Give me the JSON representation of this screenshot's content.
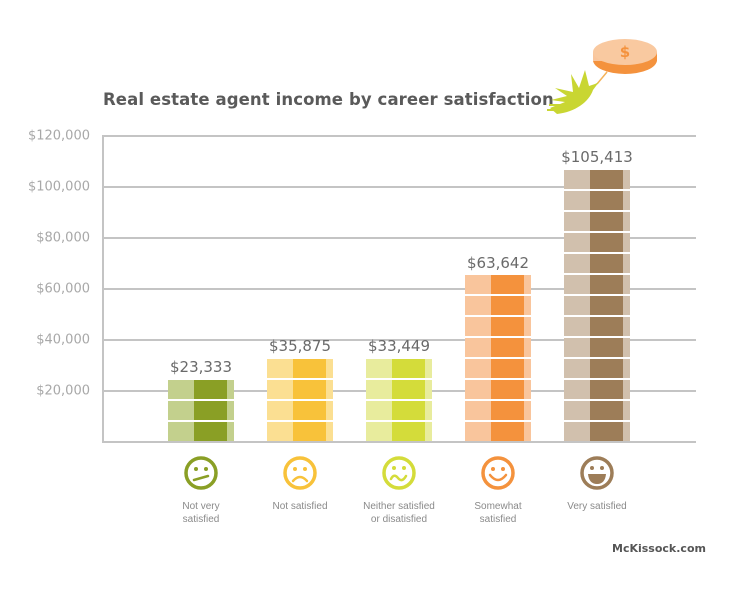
{
  "header": {
    "title": "Real estate agent income by career satisfaction",
    "logo_icon": "bird-holding-dollar-coin-icon"
  },
  "footer": {
    "credit": "McKissock.com"
  },
  "y_axis": {
    "ticks": [
      "$120,000",
      "$100,000",
      "$80,000",
      "$60,000",
      "$40,000",
      "$20,000"
    ]
  },
  "categories": [
    {
      "label_line1": "Not very",
      "label_line2": "satisfied",
      "value_label": "$23,333",
      "icon": "neutral-face-icon",
      "color_light": "#c3d08d",
      "color_dark": "#8a9f25",
      "segments": 3
    },
    {
      "label_line1": "Not satisfied",
      "label_line2": "",
      "value_label": "$35,875",
      "icon": "frowning-face-icon",
      "color_light": "#fbdf92",
      "color_dark": "#f8c23a",
      "segments": 4
    },
    {
      "label_line1": "Neither satisfied",
      "label_line2": "or disatisfied",
      "value_label": "$33,449",
      "icon": "wavy-mouth-face-icon",
      "color_light": "#e8ec9d",
      "color_dark": "#d4dc3a",
      "segments": 4
    },
    {
      "label_line1": "Somewhat",
      "label_line2": "satisfied",
      "value_label": "$63,642",
      "icon": "smiling-face-icon",
      "color_light": "#f9c59c",
      "color_dark": "#f4923d",
      "segments": 8
    },
    {
      "label_line1": "Very satisfied",
      "label_line2": "",
      "value_label": "$105,413",
      "icon": "grinning-face-icon",
      "color_light": "#d1c0ad",
      "color_dark": "#9d7d58",
      "segments": 13
    }
  ],
  "chart_data": {
    "type": "bar",
    "title": "Real estate agent income by career satisfaction",
    "categories": [
      "Not very satisfied",
      "Not satisfied",
      "Neither satisfied or disatisfied",
      "Somewhat satisfied",
      "Very satisfied"
    ],
    "values": [
      23333,
      35875,
      33449,
      63642,
      105413
    ],
    "value_labels": [
      "$23,333",
      "$35,875",
      "$33,449",
      "$63,642",
      "$105,413"
    ],
    "xlabel": "",
    "ylabel": "",
    "ylim": [
      0,
      120000
    ],
    "yticks": [
      20000,
      40000,
      60000,
      80000,
      100000,
      120000
    ],
    "grid": true,
    "legend": null,
    "colors": [
      "#8a9f25",
      "#f8c23a",
      "#d4dc3a",
      "#f4923d",
      "#9d7d58"
    ],
    "source": "McKissock.com"
  }
}
